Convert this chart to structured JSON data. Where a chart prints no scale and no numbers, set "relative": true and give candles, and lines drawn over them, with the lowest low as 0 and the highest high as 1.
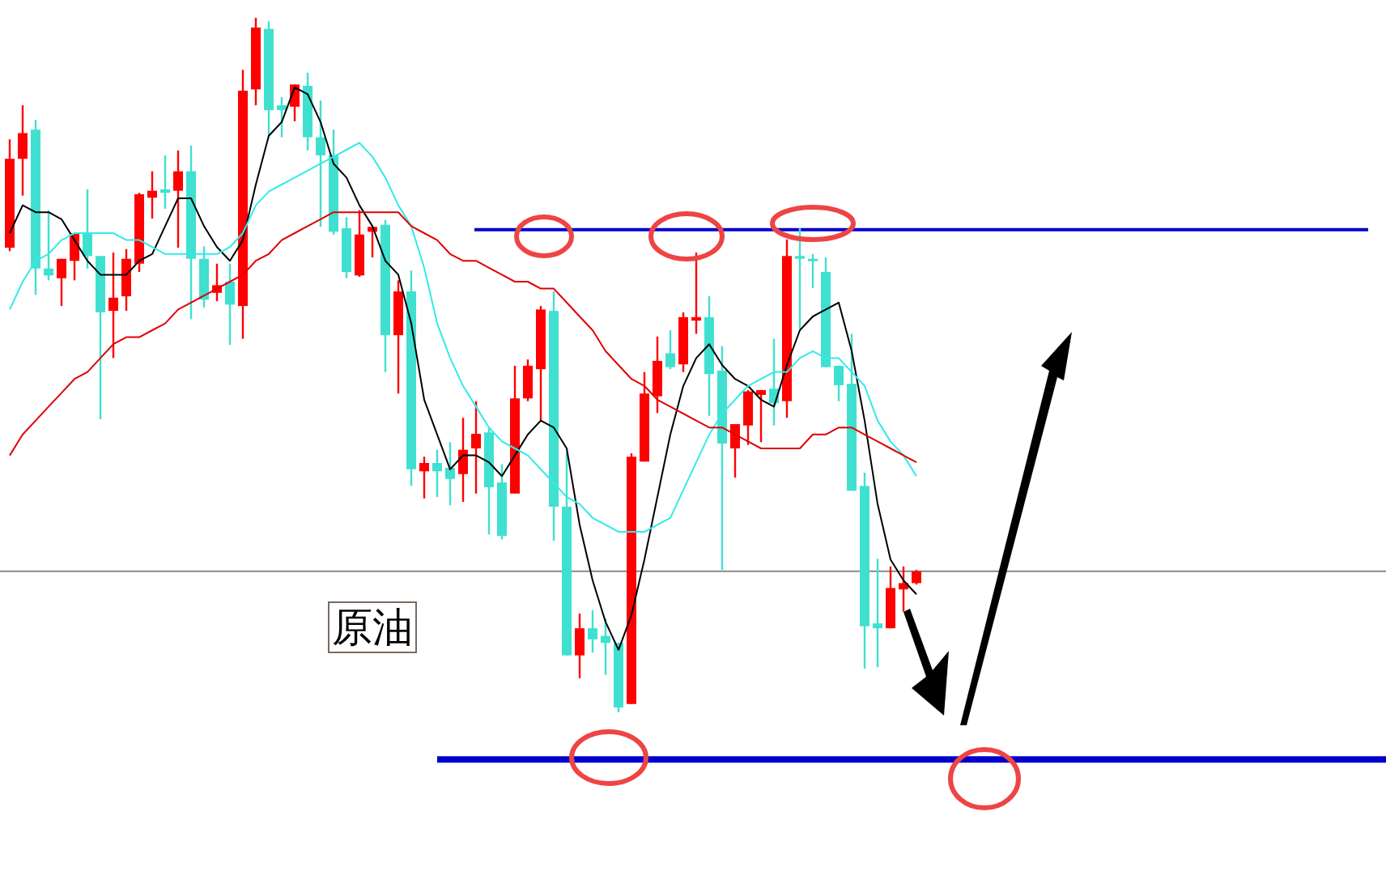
{
  "chart_data": {
    "type": "candlestick",
    "relative": true,
    "categories": [
      null,
      null,
      null,
      null,
      null,
      null,
      null,
      null,
      null,
      null,
      null,
      null,
      null,
      null,
      null,
      null,
      null,
      null,
      null,
      null,
      null,
      null,
      null,
      null,
      null,
      null,
      null,
      null,
      null,
      null,
      null,
      null,
      null,
      null,
      null,
      null,
      null,
      null,
      null,
      null,
      null,
      null,
      null,
      null,
      null,
      null,
      null,
      null,
      null,
      null,
      null,
      null,
      null,
      null,
      null,
      null,
      null,
      null,
      null,
      null,
      null,
      null,
      null,
      null,
      null,
      null,
      null,
      null,
      null,
      null,
      null
    ],
    "ohlc": [
      [
        0.669,
        0.825,
        0.664,
        0.797
      ],
      [
        0.797,
        0.874,
        0.744,
        0.834
      ],
      [
        0.839,
        0.853,
        0.601,
        0.639
      ],
      [
        0.639,
        0.723,
        0.622,
        0.629
      ],
      [
        0.625,
        0.653,
        0.585,
        0.653
      ],
      [
        0.65,
        0.69,
        0.622,
        0.69
      ],
      [
        0.69,
        0.753,
        0.639,
        0.657
      ],
      [
        0.657,
        0.657,
        0.422,
        0.576
      ],
      [
        0.578,
        0.662,
        0.51,
        0.597
      ],
      [
        0.599,
        0.667,
        0.578,
        0.653
      ],
      [
        0.646,
        0.748,
        0.634,
        0.746
      ],
      [
        0.741,
        0.779,
        0.711,
        0.751
      ],
      [
        0.753,
        0.802,
        0.725,
        0.748
      ],
      [
        0.751,
        0.809,
        0.669,
        0.779
      ],
      [
        0.779,
        0.816,
        0.566,
        0.653
      ],
      [
        0.653,
        0.671,
        0.583,
        0.594
      ],
      [
        0.604,
        0.646,
        0.592,
        0.615
      ],
      [
        0.62,
        0.646,
        0.529,
        0.587
      ],
      [
        0.585,
        0.925,
        0.538,
        0.895
      ],
      [
        0.897,
        1,
        0.874,
        0.986
      ],
      [
        0.984,
        0.995,
        0.828,
        0.867
      ],
      [
        0.874,
        0.886,
        0.828,
        0.867
      ],
      [
        0.872,
        0.904,
        0.851,
        0.904
      ],
      [
        0.902,
        0.921,
        0.809,
        0.828
      ],
      [
        0.828,
        0.881,
        0.699,
        0.802
      ],
      [
        0.802,
        0.839,
        0.688,
        0.692
      ],
      [
        0.697,
        0.713,
        0.625,
        0.634
      ],
      [
        0.629,
        0.723,
        0.627,
        0.688
      ],
      [
        0.692,
        0.699,
        0.655,
        0.699
      ],
      [
        0.702,
        0.709,
        0.49,
        0.543
      ],
      [
        0.543,
        0.622,
        0.459,
        0.606
      ],
      [
        0.606,
        0.636,
        0.326,
        0.35
      ],
      [
        0.347,
        0.368,
        0.308,
        0.359
      ],
      [
        0.359,
        0.378,
        0.31,
        0.347
      ],
      [
        0.352,
        0.389,
        0.298,
        0.336
      ],
      [
        0.343,
        0.424,
        0.303,
        0.378
      ],
      [
        0.38,
        0.448,
        0.315,
        0.401
      ],
      [
        0.403,
        0.41,
        0.256,
        0.324
      ],
      [
        0.331,
        0.357,
        0.249,
        0.254
      ],
      [
        0.315,
        0.499,
        0.315,
        0.452
      ],
      [
        0.452,
        0.508,
        0.448,
        0.499
      ],
      [
        0.494,
        0.585,
        0.42,
        0.58
      ],
      [
        0.578,
        0.606,
        0.247,
        0.296
      ],
      [
        0.296,
        0.375,
        0.082,
        0.082
      ],
      [
        0.082,
        0.142,
        0.049,
        0.121
      ],
      [
        0.121,
        0.147,
        0.086,
        0.105
      ],
      [
        0.11,
        0.135,
        0.054,
        0.1
      ],
      [
        0.1,
        0.1,
        0,
        0.007
      ],
      [
        0.012,
        0.373,
        0.012,
        0.368
      ],
      [
        0.361,
        0.49,
        0.361,
        0.459
      ],
      [
        0.455,
        0.541,
        0.431,
        0.506
      ],
      [
        0.517,
        0.55,
        0.494,
        0.497
      ],
      [
        0.501,
        0.576,
        0.49,
        0.569
      ],
      [
        0.564,
        0.662,
        0.545,
        0.569
      ],
      [
        0.569,
        0.599,
        0.427,
        0.487
      ],
      [
        0.492,
        0.527,
        0.205,
        0.387
      ],
      [
        0.38,
        0.415,
        0.338,
        0.415
      ],
      [
        0.413,
        0.464,
        0.385,
        0.462
      ],
      [
        0.457,
        0.464,
        0.389,
        0.464
      ],
      [
        0.466,
        0.538,
        0.413,
        0.445
      ],
      [
        0.448,
        0.681,
        0.424,
        0.657
      ],
      [
        0.657,
        0.697,
        0.552,
        0.653
      ],
      [
        0.653,
        0.66,
        0.611,
        0.65
      ],
      [
        0.634,
        0.655,
        0.497,
        0.497
      ],
      [
        0.499,
        0.499,
        0.448,
        0.471
      ],
      [
        0.473,
        0.545,
        0.319,
        0.319
      ],
      [
        0.326,
        0.345,
        0.063,
        0.124
      ],
      [
        0.128,
        0.221,
        0.065,
        0.121
      ],
      [
        0.121,
        0.21,
        0.121,
        0.179
      ],
      [
        0.177,
        0.21,
        0.145,
        0.186
      ],
      [
        0.186,
        0.205,
        0.184,
        0.203
      ]
    ],
    "colors": [
      "#ff0000",
      "#ff0000",
      "#40e0d0",
      "#40e0d0",
      "#ff0000",
      "#ff0000",
      "#40e0d0",
      "#40e0d0",
      "#ff0000",
      "#ff0000",
      "#ff0000",
      "#ff0000",
      "#40e0d0",
      "#ff0000",
      "#40e0d0",
      "#40e0d0",
      "#ff0000",
      "#40e0d0",
      "#ff0000",
      "#ff0000",
      "#40e0d0",
      "#40e0d0",
      "#ff0000",
      "#40e0d0",
      "#40e0d0",
      "#40e0d0",
      "#40e0d0",
      "#ff0000",
      "#ff0000",
      "#40e0d0",
      "#ff0000",
      "#40e0d0",
      "#ff0000",
      "#40e0d0",
      "#40e0d0",
      "#ff0000",
      "#ff0000",
      "#40e0d0",
      "#40e0d0",
      "#ff0000",
      "#ff0000",
      "#ff0000",
      "#40e0d0",
      "#40e0d0",
      "#ff0000",
      "#40e0d0",
      "#40e0d0",
      "#40e0d0",
      "#ff0000",
      "#ff0000",
      "#ff0000",
      "#40e0d0",
      "#ff0000",
      "#ff0000",
      "#40e0d0",
      "#40e0d0",
      "#ff0000",
      "#ff0000",
      "#ff0000",
      "#40e0d0",
      "#ff0000",
      "#40e0d0",
      "#40e0d0",
      "#40e0d0",
      "#40e0d0",
      "#40e0d0",
      "#40e0d0",
      "#40e0d0",
      "#ff0000",
      "#ff0000",
      "#ff0000"
    ],
    "series": [
      {
        "type": "line",
        "color": "#000000",
        "values": [
          0.69,
          0.73,
          0.72,
          0.72,
          0.71,
          0.68,
          0.65,
          0.63,
          0.63,
          0.63,
          0.65,
          0.66,
          0.7,
          0.74,
          0.74,
          0.7,
          0.67,
          0.65,
          0.68,
          0.76,
          0.83,
          0.85,
          0.9,
          0.89,
          0.85,
          0.79,
          0.77,
          0.73,
          0.7,
          0.65,
          0.63,
          0.56,
          0.45,
          0.4,
          0.35,
          0.37,
          0.37,
          0.36,
          0.34,
          0.37,
          0.4,
          0.42,
          0.41,
          0.38,
          0.27,
          0.19,
          0.13,
          0.09,
          0.14,
          0.22,
          0.31,
          0.4,
          0.47,
          0.51,
          0.53,
          0.5,
          0.48,
          0.47,
          0.45,
          0.44,
          0.5,
          0.55,
          0.57,
          0.58,
          0.59,
          0.52,
          0.42,
          0.3,
          0.22,
          0.19,
          0.17
        ]
      },
      {
        "type": "line",
        "color": "#33eaea",
        "values": [
          0.58,
          0.62,
          0.65,
          0.66,
          0.68,
          0.69,
          0.69,
          0.69,
          0.69,
          0.68,
          0.68,
          0.67,
          0.66,
          0.66,
          0.66,
          0.66,
          0.66,
          0.67,
          0.69,
          0.73,
          0.75,
          0.76,
          0.77,
          0.78,
          0.79,
          0.8,
          0.81,
          0.82,
          0.8,
          0.77,
          0.73,
          0.7,
          0.64,
          0.56,
          0.51,
          0.47,
          0.44,
          0.41,
          0.39,
          0.38,
          0.37,
          0.35,
          0.33,
          0.31,
          0.3,
          0.28,
          0.27,
          0.26,
          0.26,
          0.26,
          0.27,
          0.28,
          0.32,
          0.36,
          0.4,
          0.43,
          0.45,
          0.47,
          0.48,
          0.49,
          0.49,
          0.51,
          0.52,
          0.51,
          0.51,
          0.49,
          0.47,
          0.42,
          0.39,
          0.37,
          0.34
        ]
      },
      {
        "type": "line",
        "color": "#e00000",
        "values": [
          0.37,
          0.4,
          0.42,
          0.44,
          0.46,
          0.48,
          0.49,
          0.51,
          0.53,
          0.54,
          0.54,
          0.55,
          0.56,
          0.58,
          0.59,
          0.6,
          0.61,
          0.62,
          0.63,
          0.65,
          0.66,
          0.68,
          0.69,
          0.7,
          0.71,
          0.72,
          0.72,
          0.72,
          0.72,
          0.72,
          0.72,
          0.7,
          0.69,
          0.68,
          0.66,
          0.65,
          0.65,
          0.64,
          0.63,
          0.62,
          0.62,
          0.61,
          0.61,
          0.59,
          0.57,
          0.55,
          0.52,
          0.5,
          0.48,
          0.47,
          0.45,
          0.44,
          0.43,
          0.42,
          0.41,
          0.41,
          0.4,
          0.39,
          0.38,
          0.38,
          0.38,
          0.38,
          0.4,
          0.4,
          0.41,
          0.41,
          0.4,
          0.39,
          0.38,
          0.37,
          0.36
        ]
      }
    ],
    "ref_lines": [
      {
        "axis": "y",
        "value": 0.695,
        "color": "#0000cc"
      },
      {
        "axis": "y",
        "value": -0.068,
        "color": "#0000cc"
      },
      {
        "axis": "y",
        "value": 0.203,
        "color": "#888888"
      }
    ],
    "annotations": [
      "原油"
    ]
  }
}
